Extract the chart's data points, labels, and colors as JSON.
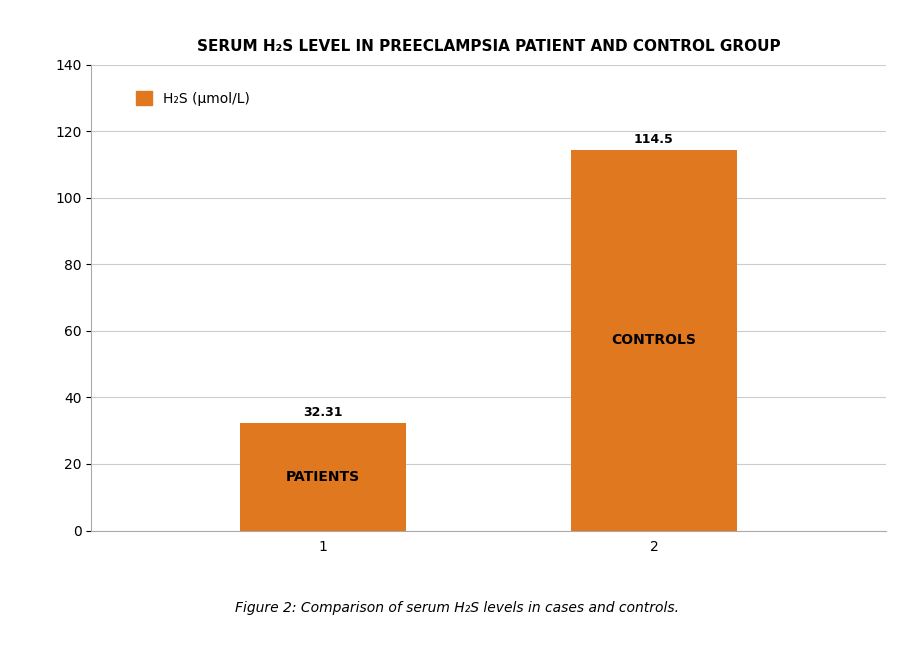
{
  "categories": [
    "1",
    "2"
  ],
  "values": [
    32.31,
    114.5
  ],
  "bar_labels": [
    "PATIENTS",
    "CONTROLS"
  ],
  "value_labels": [
    "32.31",
    "114.5"
  ],
  "bar_color": "#E07820",
  "bar_width": 0.5,
  "xlim": [
    0.3,
    2.7
  ],
  "ylim": [
    0,
    140
  ],
  "yticks": [
    0,
    20,
    40,
    60,
    80,
    100,
    120,
    140
  ],
  "title": "SERUM H₂S LEVEL IN PREECLAMPSIA PATIENT AND CONTROL GROUP",
  "title_fontsize": 11,
  "legend_label": "H₂S (μmol/L)",
  "legend_fontsize": 10,
  "caption": "Figure 2: Comparison of serum H₂S levels in cases and controls.",
  "caption_fontsize": 10,
  "bar_label_fontsize": 10,
  "value_label_fontsize": 9,
  "tick_fontsize": 10,
  "background_color": "#ffffff",
  "grid_color": "#cccccc",
  "bar_positions": [
    1,
    2
  ]
}
